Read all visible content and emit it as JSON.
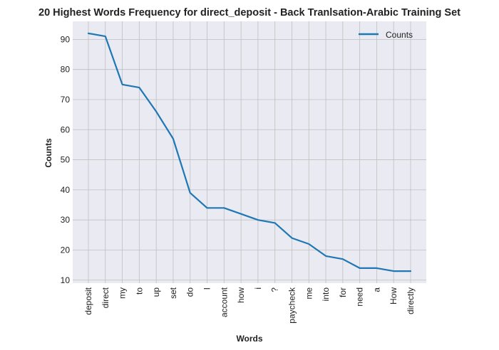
{
  "chart_data": {
    "type": "line",
    "title": "20 Highest Words Frequency for direct_deposit - Back Tranlsation-Arabic Training Set",
    "xlabel": "Words",
    "ylabel": "Counts",
    "categories": [
      "deposit",
      "direct",
      "my",
      "to",
      "up",
      "set",
      "do",
      "I",
      "account",
      "how",
      "i",
      "?",
      "paycheck",
      "me",
      "into",
      "for",
      "need",
      "a",
      "How",
      "directly"
    ],
    "series": [
      {
        "name": "Counts",
        "values": [
          92,
          91,
          75,
          74,
          66,
          57,
          39,
          34,
          34,
          32,
          30,
          29,
          24,
          22,
          18,
          17,
          14,
          14,
          13,
          13
        ],
        "color": "#1f77b4"
      }
    ],
    "ylim": [
      9,
      96
    ],
    "yticks": [
      10,
      20,
      30,
      40,
      50,
      60,
      70,
      80,
      90
    ],
    "grid": true,
    "legend_position": "top-right",
    "background_color": "#eaeaf2",
    "grid_color": "#c0c0c0"
  }
}
